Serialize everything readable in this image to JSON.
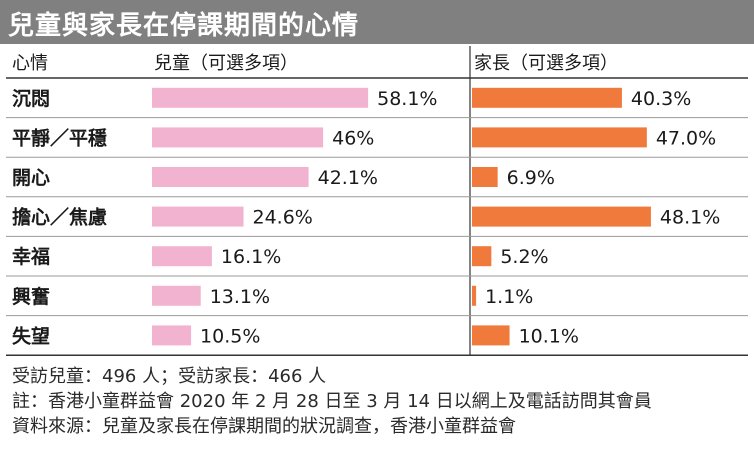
{
  "title": "兒童與家長在停課期間的心情",
  "chart_data": {
    "type": "bar",
    "orientation": "horizontal",
    "category_header": "心情",
    "categories": [
      "沉悶",
      "平靜／平穩",
      "開心",
      "擔心／焦慮",
      "幸福",
      "興奮",
      "失望"
    ],
    "series": [
      {
        "name": "兒童（可選多項）",
        "values": [
          58.1,
          46,
          42.1,
          24.6,
          16.1,
          13.1,
          10.5
        ],
        "labels": [
          "58.1%",
          "46%",
          "42.1%",
          "24.6%",
          "16.1%",
          "13.1%",
          "10.5%"
        ],
        "color": "#f2b3d0"
      },
      {
        "name": "家長（可選多項）",
        "values": [
          40.3,
          47.0,
          6.9,
          48.1,
          5.2,
          1.1,
          10.1
        ],
        "labels": [
          "40.3%",
          "47.0%",
          "6.9%",
          "48.1%",
          "5.2%",
          "1.1%",
          "10.1%"
        ],
        "color": "#f07a3c"
      }
    ],
    "xlim": [
      0,
      100
    ],
    "grid": false,
    "legend": "column headers"
  },
  "footnotes": {
    "sample": "受訪兒童：496 人；受訪家長：466 人",
    "note": "註：香港小童群益會 2020 年 2 月 28 日至 3 月 14 日以網上及電話訪問其會員",
    "source": "資料來源：兒童及家長在停課期間的狀況調查，香港小童群益會"
  },
  "colors": {
    "title_background": "#808080",
    "title_text": "#ffffff",
    "rule": "#333333",
    "row_divider": "#9a9a9a"
  }
}
